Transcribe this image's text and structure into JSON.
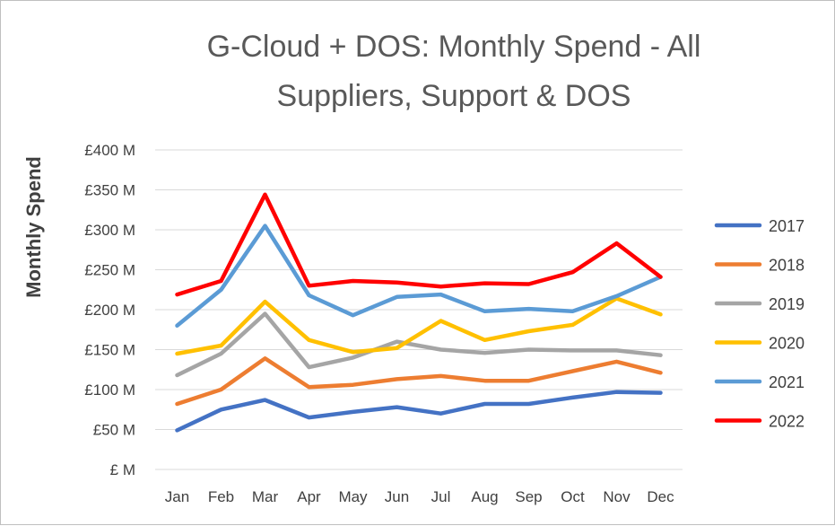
{
  "chart_data": {
    "type": "line",
    "title_lines": [
      "G-Cloud + DOS: Monthly Spend - All",
      "Suppliers, Support & DOS"
    ],
    "ylabel": "Monthly Spend",
    "xlabel": "",
    "categories": [
      "Jan",
      "Feb",
      "Mar",
      "Apr",
      "May",
      "Jun",
      "Jul",
      "Aug",
      "Sep",
      "Oct",
      "Nov",
      "Dec"
    ],
    "ylim": [
      0,
      400
    ],
    "y_ticks": [
      0,
      50,
      100,
      150,
      200,
      250,
      300,
      350,
      400
    ],
    "y_tick_labels": [
      "£ M",
      "£50 M",
      "£100 M",
      "£150 M",
      "£200 M",
      "£250 M",
      "£300 M",
      "£350 M",
      "£400 M"
    ],
    "grid": true,
    "legend_position": "right",
    "series": [
      {
        "name": "2017",
        "color": "#4472C4",
        "values": [
          49,
          75,
          87,
          65,
          72,
          78,
          70,
          82,
          82,
          90,
          97,
          96
        ]
      },
      {
        "name": "2018",
        "color": "#ED7D31",
        "values": [
          82,
          100,
          139,
          103,
          106,
          113,
          117,
          111,
          111,
          123,
          135,
          121
        ]
      },
      {
        "name": "2019",
        "color": "#A5A5A5",
        "values": [
          118,
          145,
          195,
          128,
          140,
          160,
          150,
          146,
          150,
          149,
          149,
          143
        ]
      },
      {
        "name": "2020",
        "color": "#FFC000",
        "values": [
          145,
          155,
          210,
          162,
          147,
          152,
          186,
          162,
          173,
          181,
          214,
          194
        ]
      },
      {
        "name": "2021",
        "color": "#5B9BD5",
        "values": [
          180,
          225,
          305,
          218,
          193,
          216,
          219,
          198,
          201,
          198,
          217,
          241
        ]
      },
      {
        "name": "2022",
        "color": "#FF0000",
        "values": [
          219,
          236,
          344,
          230,
          236,
          234,
          229,
          233,
          232,
          247,
          283,
          241
        ]
      }
    ]
  }
}
